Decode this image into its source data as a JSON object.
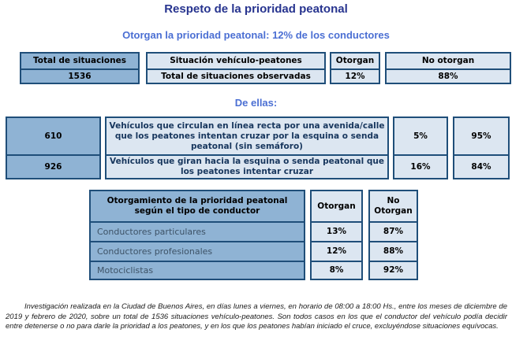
{
  "page": {
    "title": "Respeto de la prioridad peatonal",
    "subtitle": "Otorgan la prioridad peatonal: 12% de los conductores",
    "section_label": "De ellas:"
  },
  "colors": {
    "title_text": "#27348F",
    "subtitle_text": "#4B6FD3",
    "cell_border": "#1F4E79",
    "cell_medium_blue": "#8FB3D4",
    "cell_light_blue": "#DCE6F1",
    "table2_description_text": "#17365D",
    "table3_row_label_text": "#3D5266"
  },
  "table1": {
    "headers": {
      "total": "Total de situaciones",
      "situation": "Situación vehículo-peatones",
      "otorgan": "Otorgan",
      "no_otorgan": "No otorgan"
    },
    "row": {
      "total": "1536",
      "situation": "Total de situaciones observadas",
      "otorgan": "12%",
      "no_otorgan": "88%"
    }
  },
  "table2": {
    "rows": [
      {
        "count": "610",
        "label": "Vehículos que circulan en línea recta por una avenida/calle que los peatones intentan cruzar por la esquina o senda peatonal (sin semáforo)",
        "otorgan": "5%",
        "no_otorgan": "95%"
      },
      {
        "count": "926",
        "label": "Vehículos que giran hacia la esquina o senda peatonal que los peatones intentar cruzar",
        "otorgan": "16%",
        "no_otorgan": "84%"
      }
    ]
  },
  "table3": {
    "header": {
      "label": "Otorgamiento de la prioridad peatonal según el tipo de conductor",
      "otorgan": "Otorgan",
      "no_otorgan": "No Otorgan"
    },
    "rows": [
      {
        "label": "Conductores particulares",
        "otorgan": "13%",
        "no_otorgan": "87%"
      },
      {
        "label": "Conductores profesionales",
        "otorgan": "12%",
        "no_otorgan": "88%"
      },
      {
        "label": "Motociclistas",
        "otorgan": "8%",
        "no_otorgan": "92%"
      }
    ]
  },
  "footnote": "Investigación realizada en la Ciudad de Buenos Aires, en días lunes a viernes, en horario de 08:00 a 18:00 Hs., entre los meses de diciembre de 2019 y febrero de 2020, sobre un total de 1536 situaciones vehículo-peatones. Son todos casos en los que el conductor del vehículo podía decidir entre detenerse o no para darle la prioridad a los peatones, y en los que los peatones habían iniciado el cruce, excluyéndose situaciones equívocas."
}
